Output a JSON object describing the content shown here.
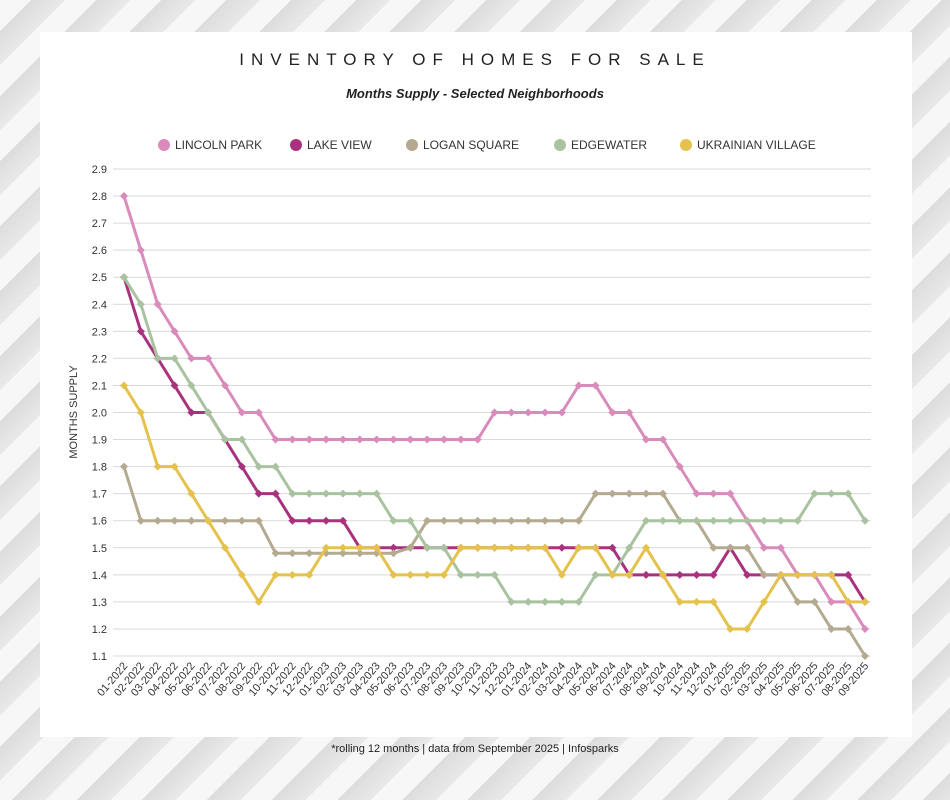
{
  "header": {
    "title": "INVENTORY OF HOMES FOR SALE",
    "subtitle": "Months Supply - Selected Neighborhoods"
  },
  "footer": {
    "note": "*rolling 12 months | data from September 2025 | Infosparks"
  },
  "chart_data": {
    "type": "line",
    "title": "INVENTORY OF HOMES FOR SALE",
    "subtitle": "Months Supply - Selected Neighborhoods",
    "xlabel": "",
    "ylabel": "MONTHS SUPPLY",
    "ylim": [
      1.1,
      2.9
    ],
    "ytick_step": 0.1,
    "grid": true,
    "legend_position": "top",
    "categories": [
      "01-2022",
      "02-2022",
      "03-2022",
      "04-2022",
      "05-2022",
      "06-2022",
      "07-2022",
      "08-2022",
      "09-2022",
      "10-2022",
      "11-2022",
      "12-2022",
      "01-2023",
      "02-2023",
      "03-2023",
      "04-2023",
      "05-2023",
      "06-2023",
      "07-2023",
      "08-2023",
      "09-2023",
      "10-2023",
      "11-2023",
      "12-2023",
      "01-2024",
      "02-2024",
      "03-2024",
      "04-2024",
      "05-2024",
      "06-2024",
      "07-2024",
      "08-2024",
      "09-2024",
      "10-2024",
      "11-2024",
      "12-2024",
      "01-2025",
      "02-2025",
      "03-2025",
      "04-2025",
      "05-2025",
      "06-2025",
      "07-2025",
      "08-2025",
      "09-2025"
    ],
    "series": [
      {
        "name": "LINCOLN PARK",
        "color": "#d98bbb",
        "values": [
          2.8,
          2.6,
          2.4,
          2.3,
          2.2,
          2.2,
          2.1,
          2.0,
          2.0,
          1.9,
          1.9,
          1.9,
          1.9,
          1.9,
          1.9,
          1.9,
          1.9,
          1.9,
          1.9,
          1.9,
          1.9,
          1.9,
          2.0,
          2.0,
          2.0,
          2.0,
          2.0,
          2.1,
          2.1,
          2.0,
          2.0,
          1.9,
          1.9,
          1.8,
          1.7,
          1.7,
          1.7,
          1.6,
          1.5,
          1.5,
          1.4,
          1.4,
          1.3,
          1.3,
          1.2
        ]
      },
      {
        "name": "LAKE VIEW",
        "color": "#a8327e",
        "values": [
          2.5,
          2.3,
          2.2,
          2.1,
          2.0,
          2.0,
          1.9,
          1.8,
          1.7,
          1.7,
          1.6,
          1.6,
          1.6,
          1.6,
          1.5,
          1.5,
          1.5,
          1.5,
          1.5,
          1.5,
          1.5,
          1.5,
          1.5,
          1.5,
          1.5,
          1.5,
          1.5,
          1.5,
          1.5,
          1.5,
          1.4,
          1.4,
          1.4,
          1.4,
          1.4,
          1.4,
          1.5,
          1.4,
          1.4,
          1.4,
          1.4,
          1.4,
          1.4,
          1.4,
          1.3
        ]
      },
      {
        "name": "LOGAN SQUARE",
        "color": "#b4aa90",
        "values": [
          1.8,
          1.6,
          1.6,
          1.6,
          1.6,
          1.6,
          1.6,
          1.6,
          1.6,
          1.48,
          1.48,
          1.48,
          1.48,
          1.48,
          1.48,
          1.48,
          1.48,
          1.5,
          1.6,
          1.6,
          1.6,
          1.6,
          1.6,
          1.6,
          1.6,
          1.6,
          1.6,
          1.6,
          1.7,
          1.7,
          1.7,
          1.7,
          1.7,
          1.6,
          1.6,
          1.5,
          1.5,
          1.5,
          1.4,
          1.4,
          1.3,
          1.3,
          1.2,
          1.2,
          1.1
        ]
      },
      {
        "name": "EDGEWATER",
        "color": "#a9c3a0",
        "values": [
          2.5,
          2.4,
          2.2,
          2.2,
          2.1,
          2.0,
          1.9,
          1.9,
          1.8,
          1.8,
          1.7,
          1.7,
          1.7,
          1.7,
          1.7,
          1.7,
          1.6,
          1.6,
          1.5,
          1.5,
          1.4,
          1.4,
          1.4,
          1.3,
          1.3,
          1.3,
          1.3,
          1.3,
          1.4,
          1.4,
          1.5,
          1.6,
          1.6,
          1.6,
          1.6,
          1.6,
          1.6,
          1.6,
          1.6,
          1.6,
          1.6,
          1.7,
          1.7,
          1.7,
          1.6
        ]
      },
      {
        "name": "UKRAINIAN VILLAGE",
        "color": "#e5c24e",
        "values": [
          2.1,
          2.0,
          1.8,
          1.8,
          1.7,
          1.6,
          1.5,
          1.4,
          1.3,
          1.4,
          1.4,
          1.4,
          1.5,
          1.5,
          1.5,
          1.5,
          1.4,
          1.4,
          1.4,
          1.4,
          1.5,
          1.5,
          1.5,
          1.5,
          1.5,
          1.5,
          1.4,
          1.5,
          1.5,
          1.4,
          1.4,
          1.5,
          1.4,
          1.3,
          1.3,
          1.3,
          1.2,
          1.2,
          1.3,
          1.4,
          1.4,
          1.4,
          1.4,
          1.3,
          1.3
        ]
      }
    ]
  }
}
